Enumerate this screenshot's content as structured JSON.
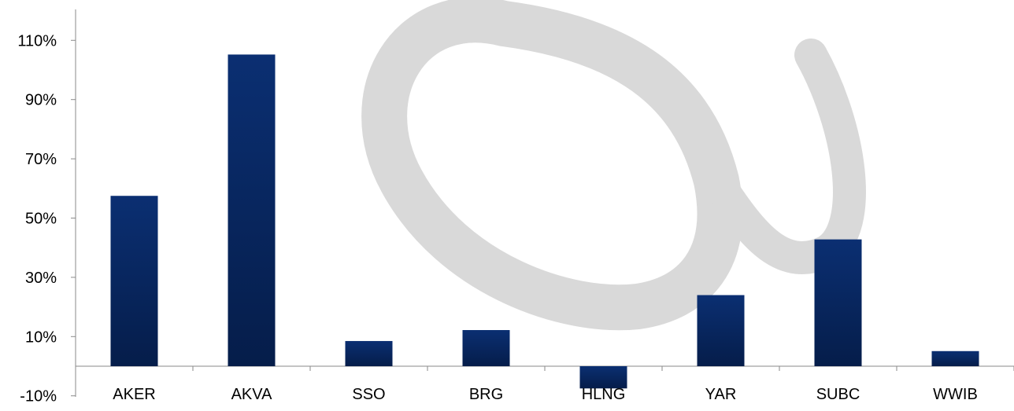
{
  "chart_data": {
    "type": "bar",
    "title": "",
    "xlabel": "",
    "ylabel": "",
    "categories": [
      "AKER",
      "AKVA",
      "SSO",
      "BRG",
      "HLNG",
      "YAR",
      "SUBC",
      "WWIB"
    ],
    "series": [
      {
        "values": [
          57.5,
          105.2,
          8.5,
          12.2,
          -7.5,
          24.0,
          42.8,
          5.1
        ]
      }
    ],
    "yticks": [
      "-10%",
      "10%",
      "30%",
      "50%",
      "70%",
      "90%",
      "110%"
    ],
    "ylim": [
      -10,
      115
    ],
    "grid": false,
    "legend": "none",
    "watermark": "alpha-logo-watermark",
    "colors": {
      "bar_top": "#0b2f72",
      "bar_bottom": "#051d4a",
      "axis": "#8a8a8a",
      "text": "#000000",
      "watermark": "#d9d9d9"
    }
  }
}
